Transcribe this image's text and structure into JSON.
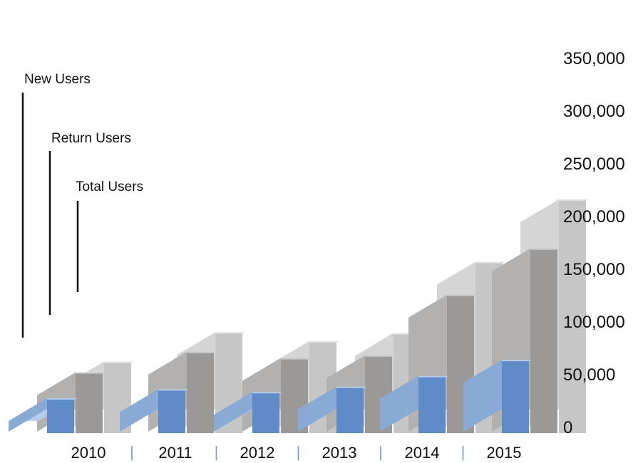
{
  "chart_data": {
    "type": "bar",
    "categories": [
      "2010",
      "2011",
      "2012",
      "2013",
      "2014",
      "2015"
    ],
    "series": [
      {
        "name": "New Users",
        "values": [
          12000,
          22000,
          19000,
          25000,
          37000,
          55000
        ],
        "color": "#7fa3cf"
      },
      {
        "name": "Return Users",
        "values": [
          41000,
          64000,
          57000,
          60000,
          128000,
          180000
        ],
        "color": "#a6a3a3"
      },
      {
        "name": "Total Users",
        "values": [
          53000,
          86000,
          76000,
          85000,
          165000,
          235000
        ],
        "color": "#c6c5c5"
      }
    ],
    "yticks": [
      "0",
      "50,000",
      "100,000",
      "150,000",
      "200,000",
      "250,000",
      "300,000",
      "350,000"
    ],
    "ylim": [
      0,
      350000
    ],
    "legend_position": "top-left",
    "separator": "|"
  }
}
